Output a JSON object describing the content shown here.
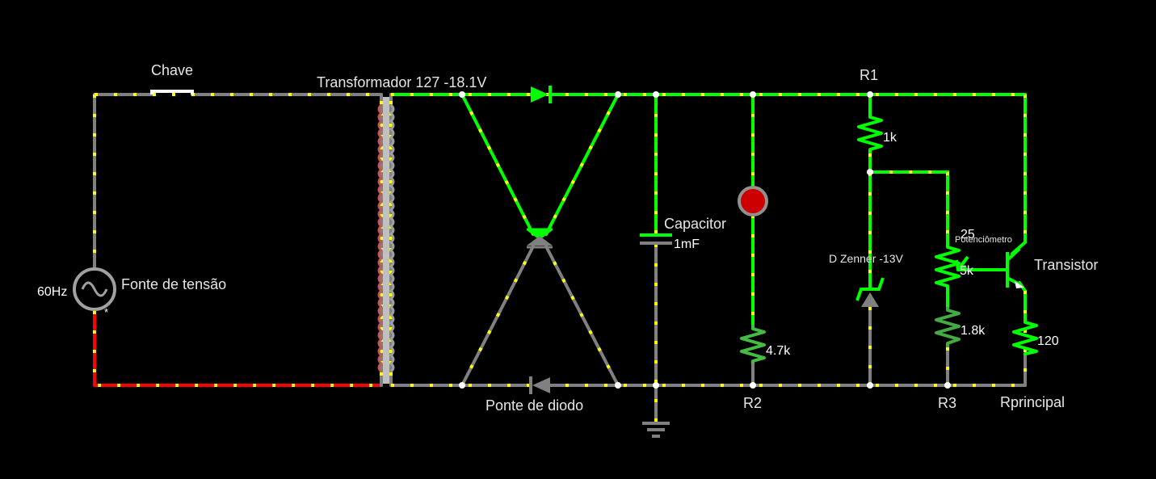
{
  "colors": {
    "background": "#000000",
    "wire_neutral": "#808080",
    "wire_active": "#00ff00",
    "wire_negative": "#ff0000",
    "current_dot": "#ffff00",
    "node": "#ffffff",
    "led": "#cc0000"
  },
  "labels": {
    "switch": "Chave",
    "transformer": "Transformador 127 -18.1V",
    "source_freq": "60Hz",
    "source": "Fonte de tensão",
    "source_polarity": "*",
    "bridge": "Ponte de diodo",
    "capacitor": "Capacitor",
    "capacitor_value": "1mF",
    "r1": "R1",
    "r1_value": "1k",
    "r2": "R2",
    "r2_value": "4.7k",
    "r3": "R3",
    "r3_value": "1.8k",
    "zener": "D Zenner -13V",
    "pot_value_top": "25",
    "pot": "Potenciômetro",
    "pot_value": "5k",
    "transistor": "Transistor",
    "rload": "Rprincipal",
    "rload_value": "120"
  }
}
